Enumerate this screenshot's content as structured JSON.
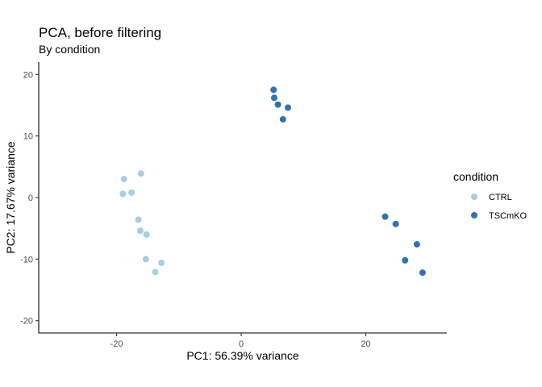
{
  "chart_data": {
    "type": "scatter",
    "title": "PCA, before filtering",
    "subtitle": "By condition",
    "xlabel": "PC1: 56.39% variance",
    "ylabel": "PC2: 17.67% variance",
    "xlim": [
      -32.5,
      33
    ],
    "ylim": [
      -22,
      22
    ],
    "xticks": [
      -20,
      0,
      20
    ],
    "yticks": [
      -20,
      -10,
      0,
      10,
      20
    ],
    "xtick_labels": [
      "-20",
      "0",
      "20"
    ],
    "ytick_labels": [
      "-20",
      "-10",
      "0",
      "10",
      "20"
    ],
    "grid": false,
    "legend": {
      "title": "condition",
      "position": "right"
    },
    "series": [
      {
        "name": "CTRL",
        "color": "#a6cee3",
        "points": [
          {
            "x": -18.8,
            "y": 3.0
          },
          {
            "x": -16.1,
            "y": 3.9
          },
          {
            "x": -19.0,
            "y": 0.6
          },
          {
            "x": -17.6,
            "y": 0.8
          },
          {
            "x": -16.5,
            "y": -3.6
          },
          {
            "x": -16.2,
            "y": -5.4
          },
          {
            "x": -15.2,
            "y": -6.0
          },
          {
            "x": -15.3,
            "y": -10.0
          },
          {
            "x": -12.8,
            "y": -10.6
          },
          {
            "x": -13.8,
            "y": -12.1
          }
        ]
      },
      {
        "name": "TSCmKO",
        "color": "#2f73b3",
        "points": [
          {
            "x": 5.2,
            "y": 17.5
          },
          {
            "x": 5.3,
            "y": 16.2
          },
          {
            "x": 5.9,
            "y": 15.1
          },
          {
            "x": 7.5,
            "y": 14.6
          },
          {
            "x": 6.7,
            "y": 12.7
          },
          {
            "x": 23.1,
            "y": -3.1
          },
          {
            "x": 24.8,
            "y": -4.3
          },
          {
            "x": 28.2,
            "y": -7.6
          },
          {
            "x": 26.3,
            "y": -10.2
          },
          {
            "x": 29.1,
            "y": -12.2
          }
        ]
      }
    ]
  }
}
